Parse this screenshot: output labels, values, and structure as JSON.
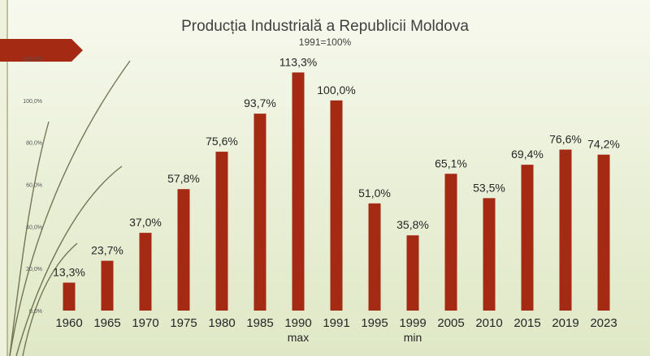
{
  "chart_data": {
    "type": "bar",
    "title": "Producția Industrială a Republicii Moldova",
    "subtitle": "1991=100%",
    "categories": [
      "1960",
      "1965",
      "1970",
      "1975",
      "1980",
      "1985",
      "1990",
      "1991",
      "1995",
      "1999",
      "2005",
      "2010",
      "2015",
      "2019",
      "2023"
    ],
    "values": [
      13.3,
      23.7,
      37.0,
      57.8,
      75.6,
      93.7,
      113.3,
      100.0,
      51.0,
      35.8,
      65.1,
      53.5,
      69.4,
      76.6,
      74.2
    ],
    "data_labels": [
      "13,3%",
      "23,7%",
      "37,0%",
      "57,8%",
      "75,6%",
      "93,7%",
      "113,3%",
      "100,0%",
      "51,0%",
      "35,8%",
      "65,1%",
      "53,5%",
      "69,4%",
      "76,6%",
      "74,2%"
    ],
    "category_notes": {
      "1990": "max",
      "1999": "min"
    },
    "ylim": [
      0,
      120
    ],
    "y_ticks": [
      0,
      20,
      40,
      60,
      80,
      100,
      120
    ],
    "y_tick_labels": [
      "0,0%",
      "20,0%",
      "40,0%",
      "60,0%",
      "80,0%",
      "100,0%",
      "120,0%"
    ],
    "bar_color": "#a52a14",
    "xlabel": "",
    "ylabel": "",
    "grid": false
  },
  "theme": {
    "accent_banner": "#a52a14",
    "vine_color": "#4d4d2a"
  }
}
